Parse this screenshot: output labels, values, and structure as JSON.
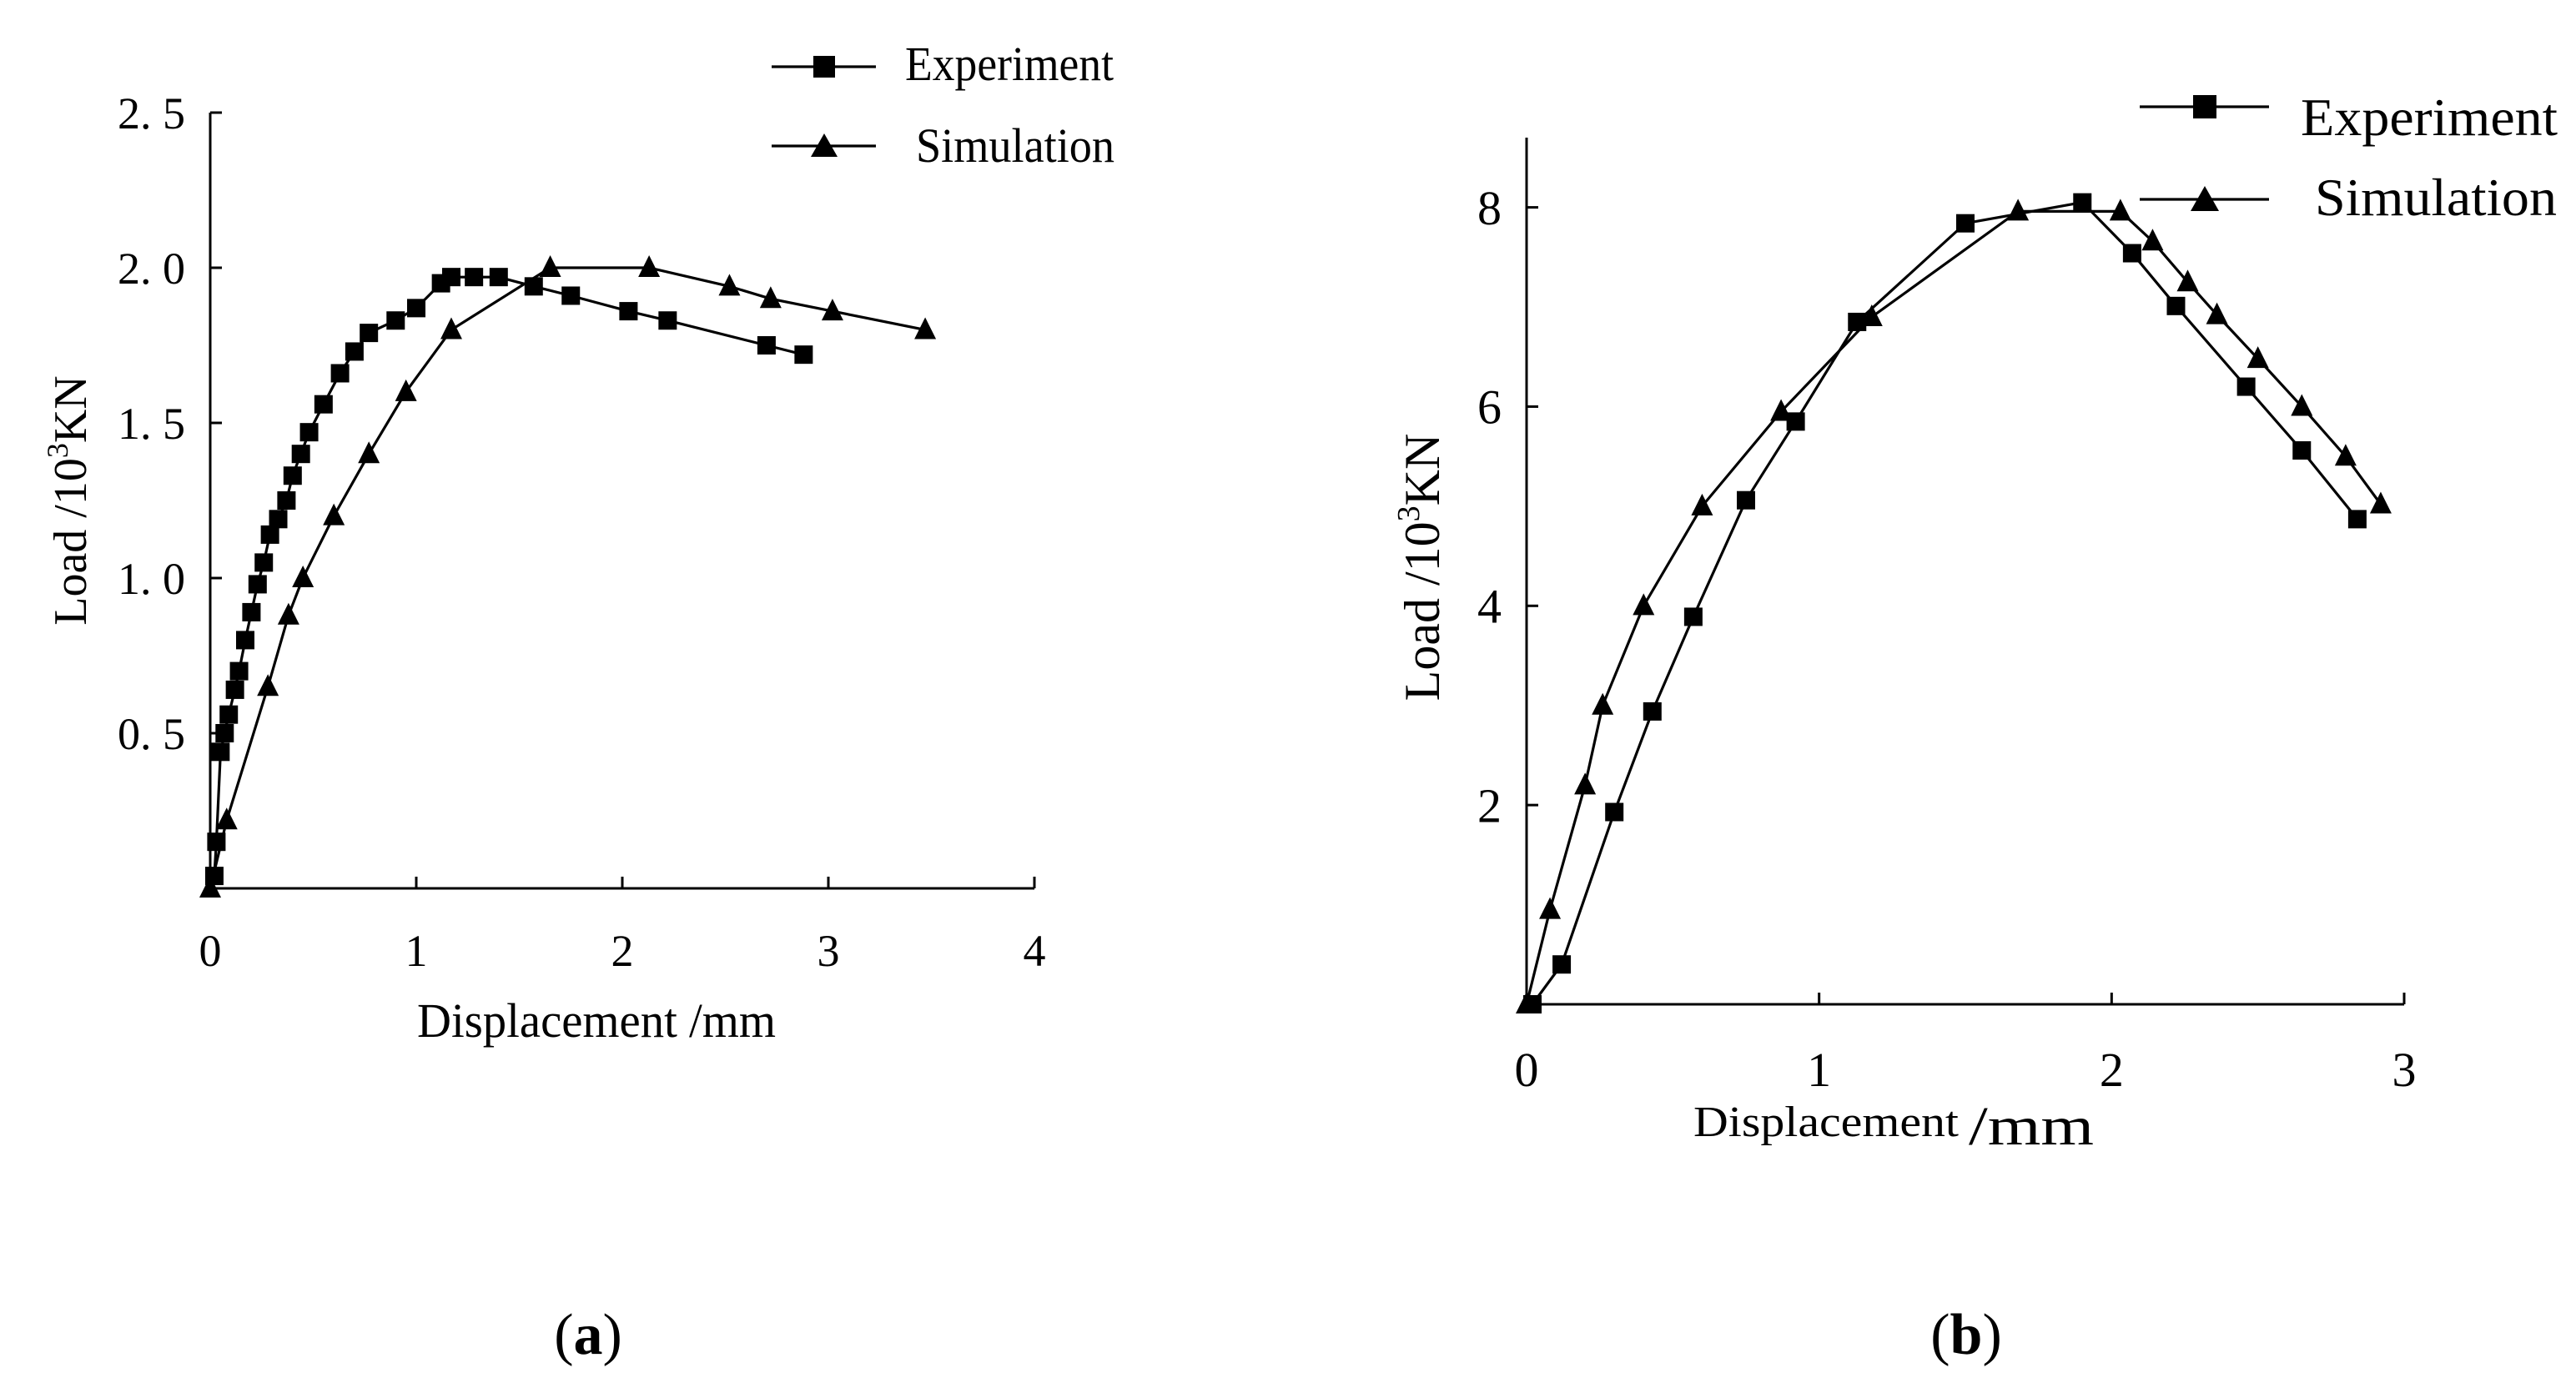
{
  "chart_data": [
    {
      "type": "line",
      "panel_label": "a",
      "xlabel": "Displacement  /mm",
      "ylabel": "Load  /10",
      "ylabel_sup": "3",
      "ylabel_unit": "KN",
      "xlim": [
        0,
        4
      ],
      "ylim": [
        0,
        2.5
      ],
      "xticks": [
        0,
        1,
        2,
        3,
        4
      ],
      "xtick_labels": [
        "0",
        "1",
        "2",
        "3",
        "4"
      ],
      "yticks": [
        0.5,
        1.0,
        1.5,
        2.0,
        2.5
      ],
      "ytick_labels": [
        "0. 5",
        "1. 0",
        "1. 5",
        "2. 0",
        "2. 5"
      ],
      "legend_position": "top-right",
      "series": [
        {
          "name": "Experiment",
          "marker": "square",
          "x": [
            0.02,
            0.03,
            0.05,
            0.07,
            0.09,
            0.12,
            0.14,
            0.17,
            0.2,
            0.23,
            0.26,
            0.29,
            0.33,
            0.37,
            0.4,
            0.44,
            0.48,
            0.55,
            0.63,
            0.7,
            0.77,
            0.9,
            1.0,
            1.12,
            1.17,
            1.28,
            1.4,
            1.57,
            1.75,
            2.03,
            2.22,
            2.7,
            2.88
          ],
          "y": [
            0.04,
            0.15,
            0.44,
            0.5,
            0.56,
            0.64,
            0.7,
            0.8,
            0.89,
            0.98,
            1.05,
            1.14,
            1.19,
            1.25,
            1.33,
            1.4,
            1.47,
            1.56,
            1.66,
            1.73,
            1.79,
            1.83,
            1.87,
            1.95,
            1.97,
            1.97,
            1.97,
            1.94,
            1.91,
            1.86,
            1.83,
            1.75,
            1.72
          ]
        },
        {
          "name": "Simulation",
          "marker": "triangle",
          "x": [
            0.0,
            0.08,
            0.28,
            0.38,
            0.45,
            0.6,
            0.77,
            0.95,
            1.17,
            1.65,
            2.13,
            2.52,
            2.72,
            3.02,
            3.47
          ],
          "y": [
            0.0,
            0.22,
            0.65,
            0.88,
            1.0,
            1.2,
            1.4,
            1.6,
            1.8,
            2.0,
            2.0,
            1.94,
            1.9,
            1.86,
            1.8
          ]
        }
      ]
    },
    {
      "type": "line",
      "panel_label": "b",
      "xlabel": "Displacement",
      "xlabel_unit": "/mm",
      "ylabel": "Load  /10",
      "ylabel_sup": "3",
      "ylabel_unit": "KN",
      "xlim": [
        0,
        3
      ],
      "ylim": [
        0,
        8.7
      ],
      "xticks": [
        0,
        1,
        2,
        3
      ],
      "xtick_labels": [
        "0",
        "1",
        "2",
        "3"
      ],
      "yticks": [
        2,
        4,
        6,
        8
      ],
      "ytick_labels": [
        "2",
        "4",
        "6",
        "8"
      ],
      "legend_position": "top-right",
      "series": [
        {
          "name": "Experiment",
          "marker": "square",
          "x": [
            0.02,
            0.12,
            0.3,
            0.43,
            0.57,
            0.75,
            0.92,
            1.13,
            1.5,
            1.9,
            2.07,
            2.22,
            2.46,
            2.65,
            2.84
          ],
          "y": [
            0.0,
            0.4,
            1.93,
            2.94,
            3.89,
            5.06,
            5.85,
            6.85,
            7.84,
            8.05,
            7.54,
            7.01,
            6.2,
            5.56,
            4.87
          ]
        },
        {
          "name": "Simulation",
          "marker": "triangle",
          "x": [
            0.0,
            0.08,
            0.2,
            0.26,
            0.4,
            0.6,
            0.87,
            1.18,
            1.68,
            2.03,
            2.14,
            2.26,
            2.36,
            2.5,
            2.65,
            2.8,
            2.92
          ],
          "y": [
            0.0,
            0.95,
            2.2,
            3.0,
            4.0,
            5.0,
            5.95,
            6.9,
            7.96,
            7.96,
            7.66,
            7.25,
            6.92,
            6.48,
            6.0,
            5.5,
            5.02
          ]
        }
      ]
    }
  ]
}
